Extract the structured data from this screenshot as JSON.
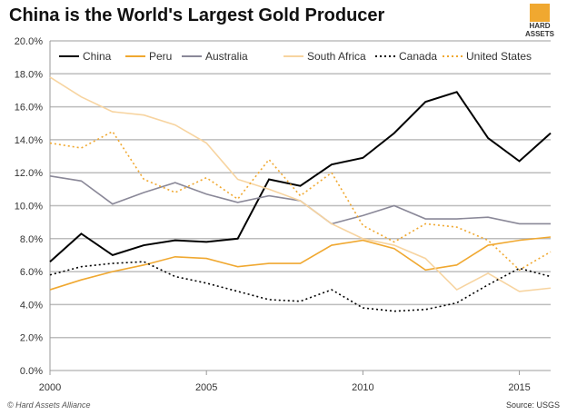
{
  "title": "China is the World's Largest Gold Producer",
  "logo": "HARD ASSETS",
  "credit": "© Hard Assets Alliance",
  "source": "Source: USGS",
  "chart_data": {
    "type": "line",
    "title": "China is the World's Largest Gold Producer",
    "xlabel": "",
    "ylabel": "",
    "x": [
      2000,
      2001,
      2002,
      2003,
      2004,
      2005,
      2006,
      2007,
      2008,
      2009,
      2010,
      2011,
      2012,
      2013,
      2014,
      2015,
      2016
    ],
    "xticks": [
      "2000",
      "2005",
      "2010",
      "2015"
    ],
    "xtick_values": [
      2000,
      2005,
      2010,
      2015
    ],
    "yticks": [
      "0.0%",
      "2.0%",
      "4.0%",
      "6.0%",
      "8.0%",
      "10.0%",
      "12.0%",
      "14.0%",
      "16.0%",
      "18.0%",
      "20.0%"
    ],
    "ylim": [
      0,
      20
    ],
    "grid": true,
    "legend": "top",
    "series": [
      {
        "name": "China",
        "color": "#000000",
        "dash": false,
        "values": [
          6.6,
          8.3,
          7.0,
          7.6,
          7.9,
          7.8,
          8.0,
          11.6,
          11.2,
          12.5,
          12.9,
          14.4,
          16.3,
          16.9,
          14.1,
          12.7,
          14.4
        ]
      },
      {
        "name": "Peru",
        "color": "#f0a830",
        "dash": false,
        "values": [
          4.9,
          5.5,
          6.0,
          6.4,
          6.9,
          6.8,
          6.3,
          6.5,
          6.5,
          7.6,
          7.9,
          7.4,
          6.1,
          6.4,
          7.6,
          7.9,
          8.1
        ]
      },
      {
        "name": "Australia",
        "color": "#8a8898",
        "dash": false,
        "values": [
          11.8,
          11.5,
          10.1,
          10.8,
          11.4,
          10.7,
          10.2,
          10.6,
          10.3,
          8.9,
          9.4,
          10.0,
          9.2,
          9.2,
          9.3,
          8.9,
          8.9
        ]
      },
      {
        "name": "South Africa",
        "color": "#f7d4a0",
        "dash": false,
        "values": [
          17.8,
          16.6,
          15.7,
          15.5,
          14.9,
          13.8,
          11.6,
          11.0,
          10.3,
          8.9,
          8.0,
          7.6,
          6.8,
          4.9,
          5.9,
          4.8,
          5.0
        ]
      },
      {
        "name": "Canada",
        "color": "#000000",
        "dash": true,
        "values": [
          5.8,
          6.3,
          6.5,
          6.6,
          5.7,
          5.3,
          4.8,
          4.3,
          4.2,
          4.9,
          3.8,
          3.6,
          3.7,
          4.1,
          5.2,
          6.2,
          5.7
        ]
      },
      {
        "name": "United States",
        "color": "#f0a830",
        "dash": true,
        "values": [
          13.8,
          13.5,
          14.5,
          11.6,
          10.8,
          11.7,
          10.4,
          12.8,
          10.6,
          12.0,
          8.8,
          7.8,
          8.9,
          8.7,
          7.9,
          6.1,
          7.2
        ]
      }
    ]
  }
}
